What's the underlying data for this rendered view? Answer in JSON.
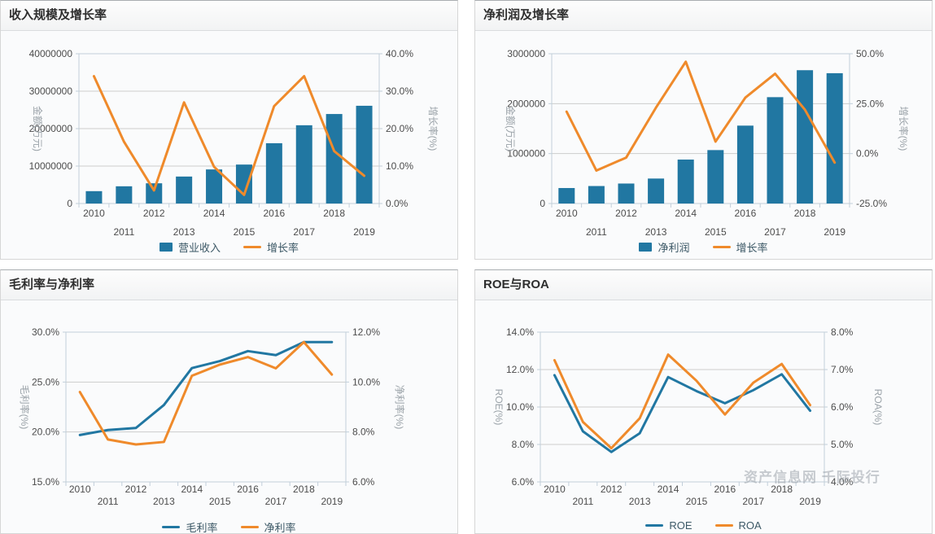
{
  "page": {
    "watermark": "资产信息网 千际投行"
  },
  "palette": {
    "bar_blue": "#2177A2",
    "line_blue": "#2177A2",
    "line_orange": "#EF8A2B",
    "grid": "#cdcdcd",
    "plot_border": "#c2cfda"
  },
  "chart_data": [
    {
      "type": "bar+line",
      "title": "收入规模及增长率",
      "categories": [
        "2010",
        "2011",
        "2012",
        "2013",
        "2014",
        "2015",
        "2016",
        "2017",
        "2018",
        "2019"
      ],
      "series": [
        {
          "name": "营业收入",
          "type": "bar",
          "axis": "left",
          "color": "#2177A2",
          "values": [
            3300000,
            4600000,
            5400000,
            7200000,
            9100000,
            10400000,
            16100000,
            20900000,
            23900000,
            26100000
          ]
        },
        {
          "name": "增长率",
          "type": "line",
          "axis": "right",
          "color": "#EF8A2B",
          "values": [
            34,
            16.5,
            3.5,
            27,
            9.8,
            2.3,
            26,
            34,
            14,
            7.4
          ]
        }
      ],
      "left_axis": {
        "title": "金额(万元)",
        "min": 0,
        "max": 40000000,
        "tick_values": [
          0,
          10000000,
          20000000,
          30000000,
          40000000
        ],
        "tick_labels": [
          "0",
          "10000000",
          "20000000",
          "30000000",
          "40000000"
        ]
      },
      "right_axis": {
        "title": "增长率(%)",
        "min": 0,
        "max": 40,
        "tick_values": [
          0,
          10,
          20,
          30,
          40
        ],
        "tick_labels": [
          "0.0%",
          "10.0%",
          "20.0%",
          "30.0%",
          "40.0%"
        ]
      },
      "legend_position": "bottom",
      "grid": true
    },
    {
      "type": "bar+line",
      "title": "净利润及增长率",
      "categories": [
        "2010",
        "2011",
        "2012",
        "2013",
        "2014",
        "2015",
        "2016",
        "2017",
        "2018",
        "2019"
      ],
      "series": [
        {
          "name": "净利润",
          "type": "bar",
          "axis": "left",
          "color": "#2177A2",
          "values": [
            310000,
            350000,
            400000,
            500000,
            880000,
            1070000,
            1560000,
            2130000,
            2670000,
            2610000
          ]
        },
        {
          "name": "增长率",
          "type": "line",
          "axis": "right",
          "color": "#EF8A2B",
          "values": [
            21,
            -8.5,
            -2,
            23,
            46,
            6,
            28,
            40,
            22,
            -4.5
          ]
        }
      ],
      "left_axis": {
        "title": "金额(万元)",
        "min": 0,
        "max": 3000000,
        "tick_values": [
          0,
          1000000,
          2000000,
          3000000
        ],
        "tick_labels": [
          "0",
          "1000000",
          "2000000",
          "3000000"
        ]
      },
      "right_axis": {
        "title": "增长率(%)",
        "min": -25,
        "max": 50,
        "tick_values": [
          -25,
          0,
          25,
          50
        ],
        "tick_labels": [
          "-25.0%",
          "0.0%",
          "25.0%",
          "50.0%"
        ]
      },
      "legend_position": "bottom",
      "grid": true
    },
    {
      "type": "line",
      "title": "毛利率与净利率",
      "categories": [
        "2010",
        "2011",
        "2012",
        "2013",
        "2014",
        "2015",
        "2016",
        "2017",
        "2018",
        "2019"
      ],
      "series": [
        {
          "name": "毛利率",
          "type": "line",
          "axis": "left",
          "color": "#2177A2",
          "values": [
            19.7,
            20.2,
            20.4,
            22.7,
            26.4,
            27.1,
            28.1,
            27.7,
            29,
            29
          ]
        },
        {
          "name": "净利率",
          "type": "line",
          "axis": "right",
          "color": "#EF8A2B",
          "values": [
            9.6,
            7.7,
            7.5,
            7.6,
            10.25,
            10.7,
            11,
            10.55,
            11.6,
            10.3
          ]
        }
      ],
      "left_axis": {
        "title": "毛利率(%)",
        "min": 15,
        "max": 30,
        "tick_values": [
          15,
          20,
          25,
          30
        ],
        "tick_labels": [
          "15.0%",
          "20.0%",
          "25.0%",
          "30.0%"
        ]
      },
      "right_axis": {
        "title": "净利率(%)",
        "min": 6,
        "max": 12,
        "tick_values": [
          6,
          8,
          10,
          12
        ],
        "tick_labels": [
          "6.0%",
          "8.0%",
          "10.0%",
          "12.0%"
        ]
      },
      "legend_position": "bottom",
      "grid": true
    },
    {
      "type": "line",
      "title": "ROE与ROA",
      "categories": [
        "2010",
        "2011",
        "2012",
        "2013",
        "2014",
        "2015",
        "2016",
        "2017",
        "2018",
        "2019"
      ],
      "series": [
        {
          "name": "ROE",
          "type": "line",
          "axis": "left",
          "color": "#2177A2",
          "values": [
            11.7,
            8.7,
            7.6,
            8.6,
            11.6,
            10.85,
            10.2,
            10.9,
            11.75,
            9.8
          ]
        },
        {
          "name": "ROA",
          "type": "line",
          "axis": "right",
          "color": "#EF8A2B",
          "values": [
            7.25,
            5.6,
            4.9,
            5.7,
            7.4,
            6.7,
            5.8,
            6.65,
            7.15,
            6.05
          ]
        }
      ],
      "left_axis": {
        "title": "ROE(%)",
        "min": 6,
        "max": 14,
        "tick_values": [
          6,
          8,
          10,
          12,
          14
        ],
        "tick_labels": [
          "6.0%",
          "8.0%",
          "10.0%",
          "12.0%",
          "14.0%"
        ]
      },
      "right_axis": {
        "title": "ROA(%)",
        "min": 4,
        "max": 8,
        "tick_values": [
          4,
          5,
          6,
          7,
          8
        ],
        "tick_labels": [
          "4.0%",
          "5.0%",
          "6.0%",
          "7.0%",
          "8.0%"
        ]
      },
      "legend_position": "bottom",
      "grid": true
    }
  ]
}
